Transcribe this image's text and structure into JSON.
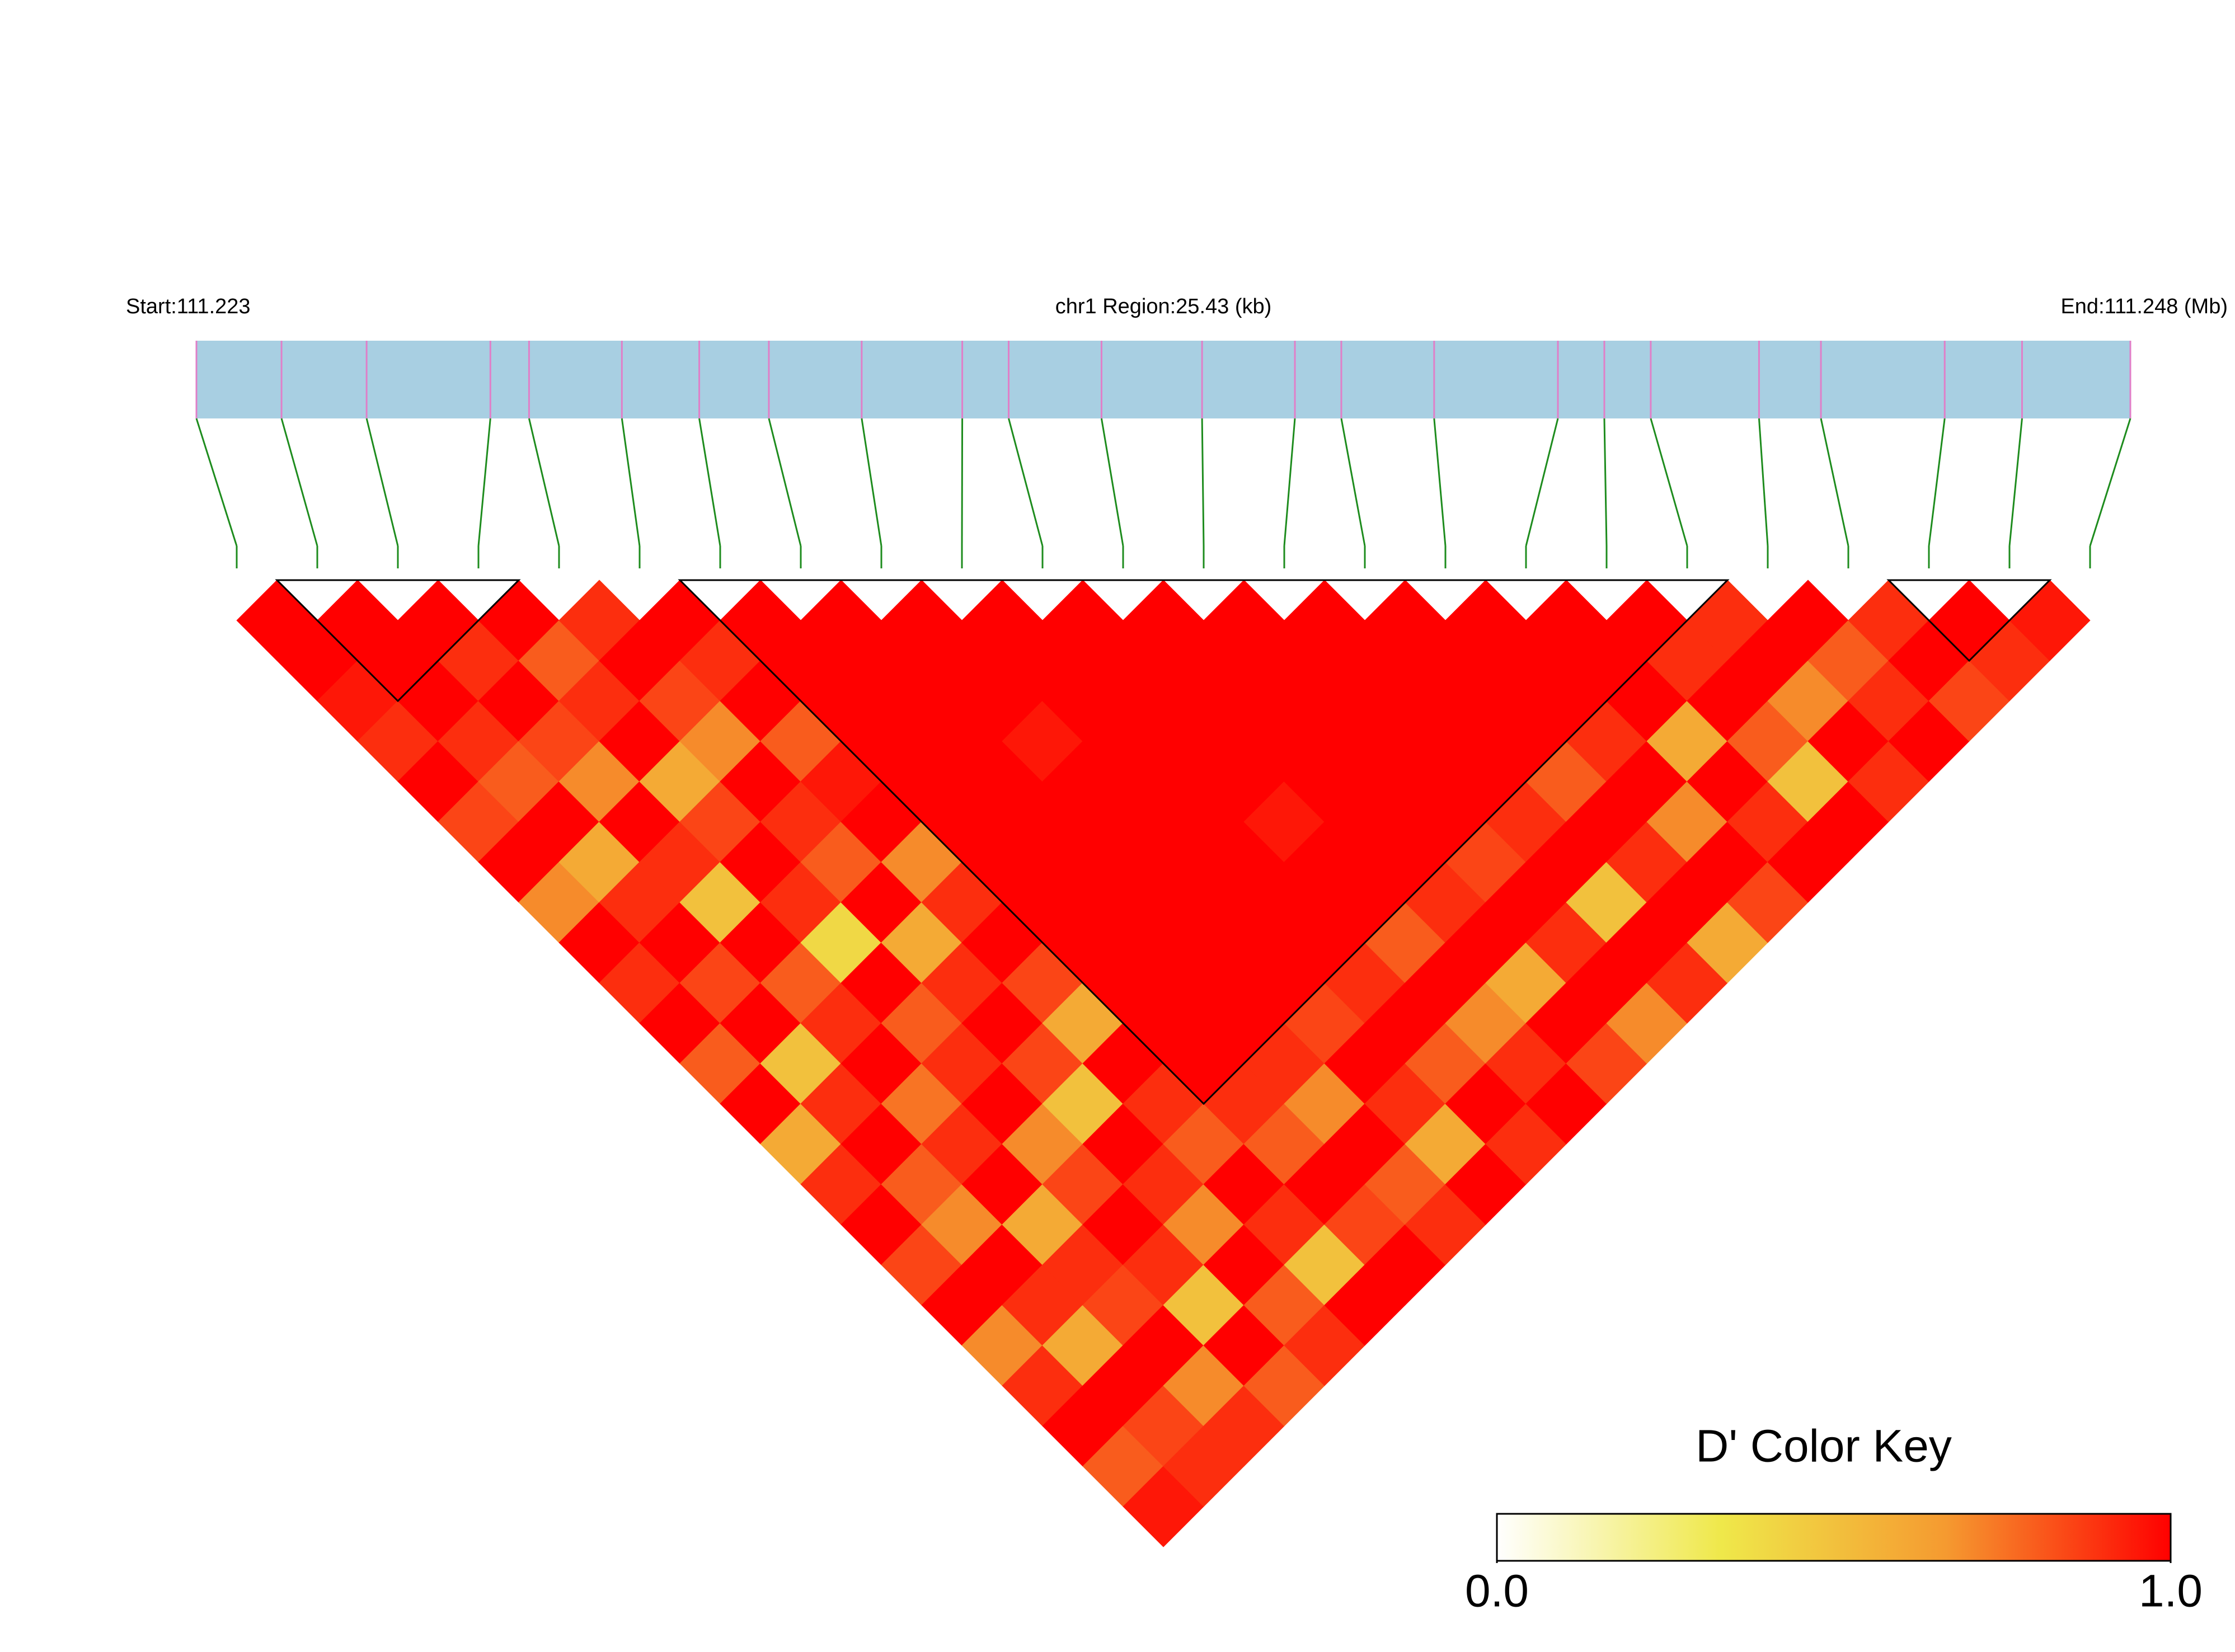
{
  "chart_data": {
    "type": "ld_heatmap",
    "start_label": "Start:111.223",
    "region_label": "chr1 Region:25.43 (kb)",
    "end_label": "End:111.248 (Mb)",
    "xlim": [
      111.223,
      111.248
    ],
    "positions": [
      111.223,
      111.2241,
      111.2252,
      111.2268,
      111.2273,
      111.2285,
      111.2295,
      111.2304,
      111.2316,
      111.2329,
      111.2335,
      111.2347,
      111.236,
      111.2372,
      111.2378,
      111.239,
      111.2406,
      111.2412,
      111.2418,
      111.2432,
      111.244,
      111.2456,
      111.2466,
      111.248
    ],
    "dprime": [
      [
        1,
        1,
        0.95,
        0.9,
        1,
        0.85,
        1,
        0.7,
        1,
        0.9,
        1,
        0.8,
        1,
        0.6,
        0.9,
        1,
        0.85,
        1,
        0.7,
        0.9,
        1,
        0.8,
        0.95
      ],
      [
        1,
        1,
        1,
        0.9,
        0.8,
        1,
        0.6,
        0.9,
        1,
        0.85,
        1,
        0.5,
        0.9,
        1,
        0.8,
        0.7,
        1,
        0.9,
        0.6,
        1,
        0.85,
        0.9
      ],
      [
        1,
        0.9,
        1,
        0.85,
        0.7,
        1,
        0.9,
        0.5,
        1,
        0.8,
        0.9,
        1,
        0.75,
        0.9,
        1,
        0.6,
        0.9,
        0.85,
        1,
        0.7,
        0.9
      ],
      [
        1,
        0.8,
        0.9,
        1,
        0.6,
        0.85,
        1,
        0.9,
        0.4,
        1,
        0.8,
        0.9,
        1,
        0.7,
        0.85,
        1,
        0.9,
        0.5,
        1,
        0.8
      ],
      [
        0.9,
        1,
        0.85,
        0.7,
        1,
        0.9,
        0.8,
        1,
        0.6,
        0.9,
        1,
        0.85,
        0.5,
        1,
        0.9,
        0.7,
        1,
        0.8,
        0.9
      ],
      [
        1,
        0.9,
        1,
        0.8,
        0.95,
        1,
        0.7,
        0.9,
        1,
        0.85,
        0.6,
        1,
        0.9,
        0.8,
        1,
        0.9,
        0.5,
        1
      ],
      [
        1,
        1,
        1,
        1,
        1,
        1,
        1,
        1,
        1,
        1,
        1,
        1,
        0.9,
        0.8,
        1,
        0.85,
        1
      ],
      [
        1,
        1,
        1,
        1,
        1,
        1,
        1,
        1,
        1,
        1,
        1,
        0.9,
        0.7,
        1,
        0.8,
        0.9
      ],
      [
        1,
        1,
        1,
        0.95,
        1,
        1,
        1,
        1,
        1,
        1,
        0.85,
        1,
        0.9,
        0.6,
        1
      ],
      [
        1,
        1,
        1,
        1,
        1,
        1,
        1,
        1,
        1,
        0.9,
        1,
        0.8,
        1,
        0.9
      ],
      [
        1,
        1,
        1,
        1,
        1,
        0.95,
        1,
        1,
        0.8,
        1,
        0.7,
        0.9,
        1
      ],
      [
        1,
        1,
        1,
        1,
        1,
        1,
        1,
        0.9,
        1,
        0.6,
        1,
        0.85
      ],
      [
        1,
        1,
        1,
        1,
        1,
        1,
        0.85,
        1,
        0.9,
        1,
        0.7
      ],
      [
        1,
        1,
        1,
        1,
        1,
        0.9,
        1,
        0.5,
        1,
        0.9
      ],
      [
        1,
        1,
        1,
        1,
        0.8,
        1,
        0.9,
        1,
        0.6
      ],
      [
        1,
        1,
        1,
        0.9,
        1,
        0.7,
        1,
        0.85
      ],
      [
        1,
        1,
        1,
        0.6,
        1,
        0.9,
        1
      ],
      [
        1,
        0.9,
        1,
        0.8,
        0.5,
        1
      ],
      [
        0.9,
        1,
        0.7,
        1,
        0.9
      ],
      [
        1,
        0.8,
        0.9,
        1
      ],
      [
        0.9,
        1,
        0.85
      ],
      [
        1,
        0.9
      ],
      [
        0.95
      ]
    ],
    "blocks": [
      [
        1,
        3
      ],
      [
        6,
        18
      ],
      [
        21,
        22
      ]
    ],
    "bar_color": "#a8cfe2",
    "snp_color": "#e07fc8",
    "link_color": "#1e8c1e",
    "colorbar": {
      "title": "D' Color Key",
      "clim": [
        0,
        1
      ],
      "ticks": [
        {
          "value": 0,
          "label": "0.0"
        },
        {
          "value": 1,
          "label": "1.0"
        }
      ],
      "colors": [
        "#ffffff",
        "#efe84a",
        "#f59a30",
        "#ff0000"
      ]
    }
  }
}
